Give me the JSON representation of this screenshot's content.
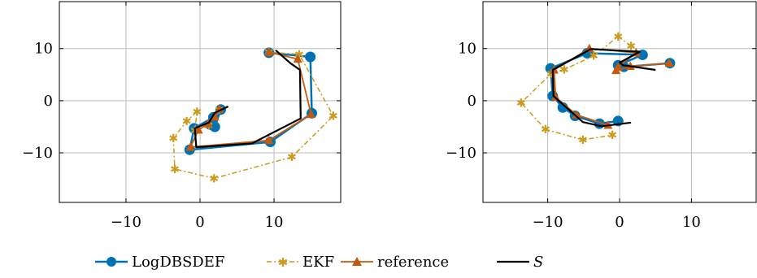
{
  "chart_data": [
    {
      "type": "line",
      "xlim": [
        -19,
        19
      ],
      "ylim": [
        -19.5,
        19
      ],
      "xticks": [
        -10,
        0,
        10
      ],
      "yticks": [
        -10,
        0,
        10
      ],
      "xtick_labels": [
        "−10",
        "0",
        "10"
      ],
      "ytick_labels": [
        "−10",
        "0",
        "10"
      ],
      "grid": true,
      "series": [
        {
          "name": "LogDBSDEF",
          "x": [
            9.3,
            14.9,
            15.1,
            9.5,
            -1.4,
            -0.8,
            1.8,
            1.4,
            2.0,
            2.8
          ],
          "y": [
            9.2,
            8.4,
            -2.4,
            -7.9,
            -9.4,
            -5.3,
            -3.2,
            -4.6,
            -5.0,
            -1.7
          ]
        },
        {
          "name": "EKF",
          "x": [
            9.3,
            13.4,
            18.0,
            12.4,
            1.9,
            -3.4,
            -3.6,
            -1.8,
            -0.4,
            -0.7,
            1.2,
            2.6
          ],
          "y": [
            9.3,
            8.9,
            -2.9,
            -10.8,
            -14.9,
            -13.1,
            -7.2,
            -3.9,
            -2.1,
            -5.7,
            -4.8,
            -1.7
          ]
        },
        {
          "name": "reference",
          "x": [
            9.3,
            13.2,
            15.0,
            9.3,
            -1.3,
            -0.2,
            1.1,
            2.0,
            2.6
          ],
          "y": [
            9.3,
            8.0,
            -2.6,
            -7.6,
            -8.9,
            -5.6,
            -4.4,
            -3.1,
            -1.6
          ]
        },
        {
          "name": "S",
          "x": [
            10.2,
            12.2,
            13.5,
            13.6,
            7.0,
            -0.5,
            -0.7,
            1.2,
            2.0,
            3.8
          ],
          "y": [
            9.7,
            7.2,
            5.9,
            -3.4,
            -8.2,
            -8.9,
            -5.3,
            -4.2,
            -2.3,
            -1.1
          ]
        }
      ]
    },
    {
      "type": "line",
      "xlim": [
        -19,
        19
      ],
      "ylim": [
        -19.5,
        19
      ],
      "xticks": [
        -10,
        0,
        10
      ],
      "yticks": [
        -10,
        0,
        10
      ],
      "xtick_labels": [
        "−10",
        "0",
        "10"
      ],
      "ytick_labels": [
        "−10",
        "0",
        "10"
      ],
      "grid": true,
      "series": [
        {
          "name": "LogDBSDEF",
          "x": [
            7.0,
            0.6,
            -0.2,
            3.2,
            -4.5,
            -9.6,
            -9.3,
            -7.9,
            -6.2,
            -2.8,
            -0.2
          ],
          "y": [
            7.2,
            6.5,
            6.8,
            8.8,
            9.1,
            6.2,
            0.9,
            -1.3,
            -2.9,
            -4.4,
            -3.9
          ]
        },
        {
          "name": "EKF",
          "x": [
            1.6,
            -0.2,
            -3.6,
            -7.7,
            -9.5,
            -13.7,
            -10.3,
            -5.1,
            -1.0
          ],
          "y": [
            10.5,
            12.3,
            8.6,
            6.0,
            5.2,
            -0.4,
            -5.5,
            -7.5,
            -6.6
          ]
        },
        {
          "name": "reference",
          "x": [
            6.9,
            1.5,
            -0.5,
            -0.2,
            2.3,
            -4.2,
            -9.1,
            -8.9,
            -6.0,
            -1.6
          ],
          "y": [
            7.2,
            6.6,
            5.8,
            6.5,
            9.2,
            10.0,
            5.9,
            0.7,
            -2.7,
            -4.7
          ]
        },
        {
          "name": "S",
          "x": [
            5.0,
            0.5,
            0.0,
            2.8,
            -4.0,
            -9.3,
            -9.2,
            -7.4,
            -5.1,
            -2.5,
            1.6
          ],
          "y": [
            5.9,
            6.8,
            7.3,
            9.4,
            9.9,
            5.9,
            0.9,
            -1.3,
            -4.1,
            -4.9,
            -4.2
          ]
        }
      ]
    }
  ],
  "legend": {
    "placement": "bottom",
    "items": [
      {
        "label": "LogDBSDEF",
        "marker": "circle",
        "color": "#0072b2",
        "dash": "solid"
      },
      {
        "label": "EKF",
        "marker": "star",
        "color": "#cc9a1c",
        "dash": "dashdot"
      },
      {
        "label": "reference",
        "marker": "triangle",
        "color": "#c65a0c",
        "dash": "solid"
      },
      {
        "label": "S",
        "marker": "none",
        "color": "#000000",
        "dash": "solid"
      }
    ]
  },
  "colors": {
    "LogDBSDEF": "#0072b2",
    "EKF": "#cc9a1c",
    "reference": "#c65a0c",
    "S": "#000000",
    "grid": "#bdbdbd"
  }
}
